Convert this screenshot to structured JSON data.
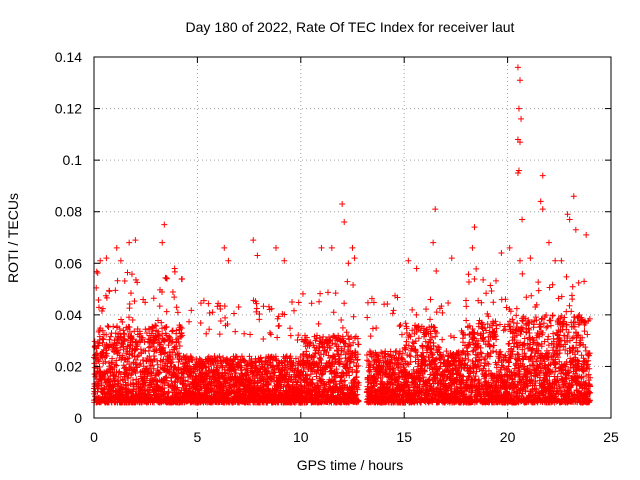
{
  "chart_data": {
    "type": "scatter",
    "title": "Day 180 of 2022, Rate Of TEC Index for receiver laut",
    "xlabel": "GPS time / hours",
    "ylabel": "ROTI / TECUs",
    "xlim": [
      0,
      25
    ],
    "ylim": [
      0,
      0.14
    ],
    "xticks": [
      0,
      5,
      10,
      15,
      20,
      25
    ],
    "yticks": [
      0,
      0.02,
      0.04,
      0.06,
      0.08,
      0.1,
      0.12,
      0.14
    ],
    "xtick_labels": [
      "0",
      "5",
      "10",
      "15",
      "20",
      "25"
    ],
    "ytick_labels": [
      "0",
      "0.02",
      "0.04",
      "0.06",
      "0.08",
      "0.1",
      "0.12",
      "0.14"
    ],
    "grid": true,
    "marker": "+",
    "color": "#ff0000",
    "gap_hours": [
      12.8,
      13.2
    ],
    "series": [
      {
        "name": "ROTI",
        "outliers": [
          {
            "x": 0.3,
            "y": 0.061
          },
          {
            "x": 0.6,
            "y": 0.062
          },
          {
            "x": 1.1,
            "y": 0.066
          },
          {
            "x": 1.3,
            "y": 0.061
          },
          {
            "x": 1.7,
            "y": 0.068
          },
          {
            "x": 2.0,
            "y": 0.069
          },
          {
            "x": 3.4,
            "y": 0.075
          },
          {
            "x": 3.3,
            "y": 0.068
          },
          {
            "x": 3.9,
            "y": 0.058
          },
          {
            "x": 6.3,
            "y": 0.066
          },
          {
            "x": 6.5,
            "y": 0.061
          },
          {
            "x": 7.7,
            "y": 0.069
          },
          {
            "x": 7.9,
            "y": 0.063
          },
          {
            "x": 8.8,
            "y": 0.066
          },
          {
            "x": 9.2,
            "y": 0.061
          },
          {
            "x": 11.0,
            "y": 0.066
          },
          {
            "x": 11.5,
            "y": 0.066
          },
          {
            "x": 12.0,
            "y": 0.083
          },
          {
            "x": 12.1,
            "y": 0.076
          },
          {
            "x": 12.3,
            "y": 0.06
          },
          {
            "x": 12.5,
            "y": 0.066
          },
          {
            "x": 12.6,
            "y": 0.062
          },
          {
            "x": 15.2,
            "y": 0.061
          },
          {
            "x": 15.6,
            "y": 0.058
          },
          {
            "x": 16.5,
            "y": 0.081
          },
          {
            "x": 16.4,
            "y": 0.068
          },
          {
            "x": 17.3,
            "y": 0.062
          },
          {
            "x": 18.4,
            "y": 0.074
          },
          {
            "x": 18.3,
            "y": 0.066
          },
          {
            "x": 19.7,
            "y": 0.064
          },
          {
            "x": 20.1,
            "y": 0.066
          },
          {
            "x": 20.5,
            "y": 0.136
          },
          {
            "x": 20.6,
            "y": 0.131
          },
          {
            "x": 20.55,
            "y": 0.12
          },
          {
            "x": 20.65,
            "y": 0.116
          },
          {
            "x": 20.5,
            "y": 0.108
          },
          {
            "x": 20.6,
            "y": 0.107
          },
          {
            "x": 20.55,
            "y": 0.096
          },
          {
            "x": 20.5,
            "y": 0.095
          },
          {
            "x": 20.7,
            "y": 0.077
          },
          {
            "x": 20.6,
            "y": 0.061
          },
          {
            "x": 21.1,
            "y": 0.062
          },
          {
            "x": 21.7,
            "y": 0.094
          },
          {
            "x": 21.6,
            "y": 0.084
          },
          {
            "x": 21.7,
            "y": 0.081
          },
          {
            "x": 22.0,
            "y": 0.068
          },
          {
            "x": 22.3,
            "y": 0.061
          },
          {
            "x": 22.6,
            "y": 0.061
          },
          {
            "x": 22.9,
            "y": 0.079
          },
          {
            "x": 23.2,
            "y": 0.086
          },
          {
            "x": 23.0,
            "y": 0.077
          },
          {
            "x": 23.3,
            "y": 0.073
          },
          {
            "x": 23.8,
            "y": 0.071
          },
          {
            "x": 23.7,
            "y": 0.053
          }
        ]
      }
    ]
  }
}
